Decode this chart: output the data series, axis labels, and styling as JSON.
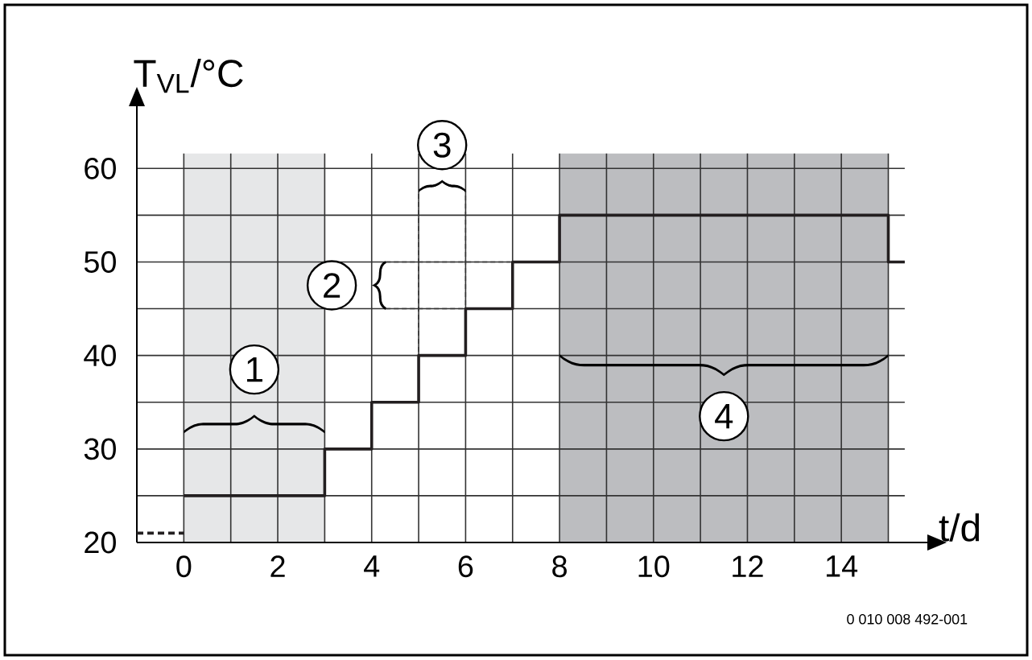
{
  "chart_data": {
    "type": "step",
    "xlabel": "t/d",
    "ylabel": "T$_{VL}$/°C",
    "xlim": [
      -1,
      15.9
    ],
    "ylim": [
      20,
      67
    ],
    "xticks": [
      0,
      {
        "value": 1,
        "label": null
      },
      2,
      {
        "value": 3,
        "label": null
      },
      4,
      {
        "value": 5,
        "label": null
      },
      6,
      {
        "value": 7,
        "label": null
      },
      8,
      {
        "value": 9,
        "label": null
      },
      10,
      {
        "value": 11,
        "label": null
      },
      12,
      {
        "value": 13,
        "label": null
      },
      14,
      {
        "value": 15,
        "label": null
      }
    ],
    "yticks": [
      20,
      {
        "value": 25,
        "label": null
      },
      30,
      {
        "value": 35,
        "label": null
      },
      40,
      {
        "value": 45,
        "label": null
      },
      50,
      {
        "value": 55,
        "label": null
      },
      60
    ],
    "grid": true,
    "bands": [
      {
        "axis": "x",
        "from": 0,
        "to": 3,
        "color": "#e6e7e8"
      },
      {
        "axis": "x",
        "from": 8,
        "to": 15,
        "color": "#bcbdc0"
      }
    ],
    "series": [
      {
        "color": "#231f20",
        "line_style": "dashed",
        "x": [
          -1,
          0
        ],
        "values": [
          21,
          21
        ]
      },
      {
        "color": "#231f20",
        "line_style": "solid",
        "x": [
          0,
          3,
          4,
          5,
          6,
          7,
          8,
          15,
          15.35
        ],
        "values": [
          25,
          30,
          35,
          40,
          45,
          50,
          55,
          50,
          50
        ]
      }
    ],
    "annotations": [
      {
        "text": "1",
        "x": 1.5,
        "y": 38.5
      },
      {
        "text": "2",
        "x": 3.15,
        "y": 47.5
      },
      {
        "text": "3",
        "x": 5.5,
        "y": 62.5
      },
      {
        "text": "4",
        "x": 11.5,
        "y": 33.5
      },
      "0 010 008 492-001"
    ]
  }
}
